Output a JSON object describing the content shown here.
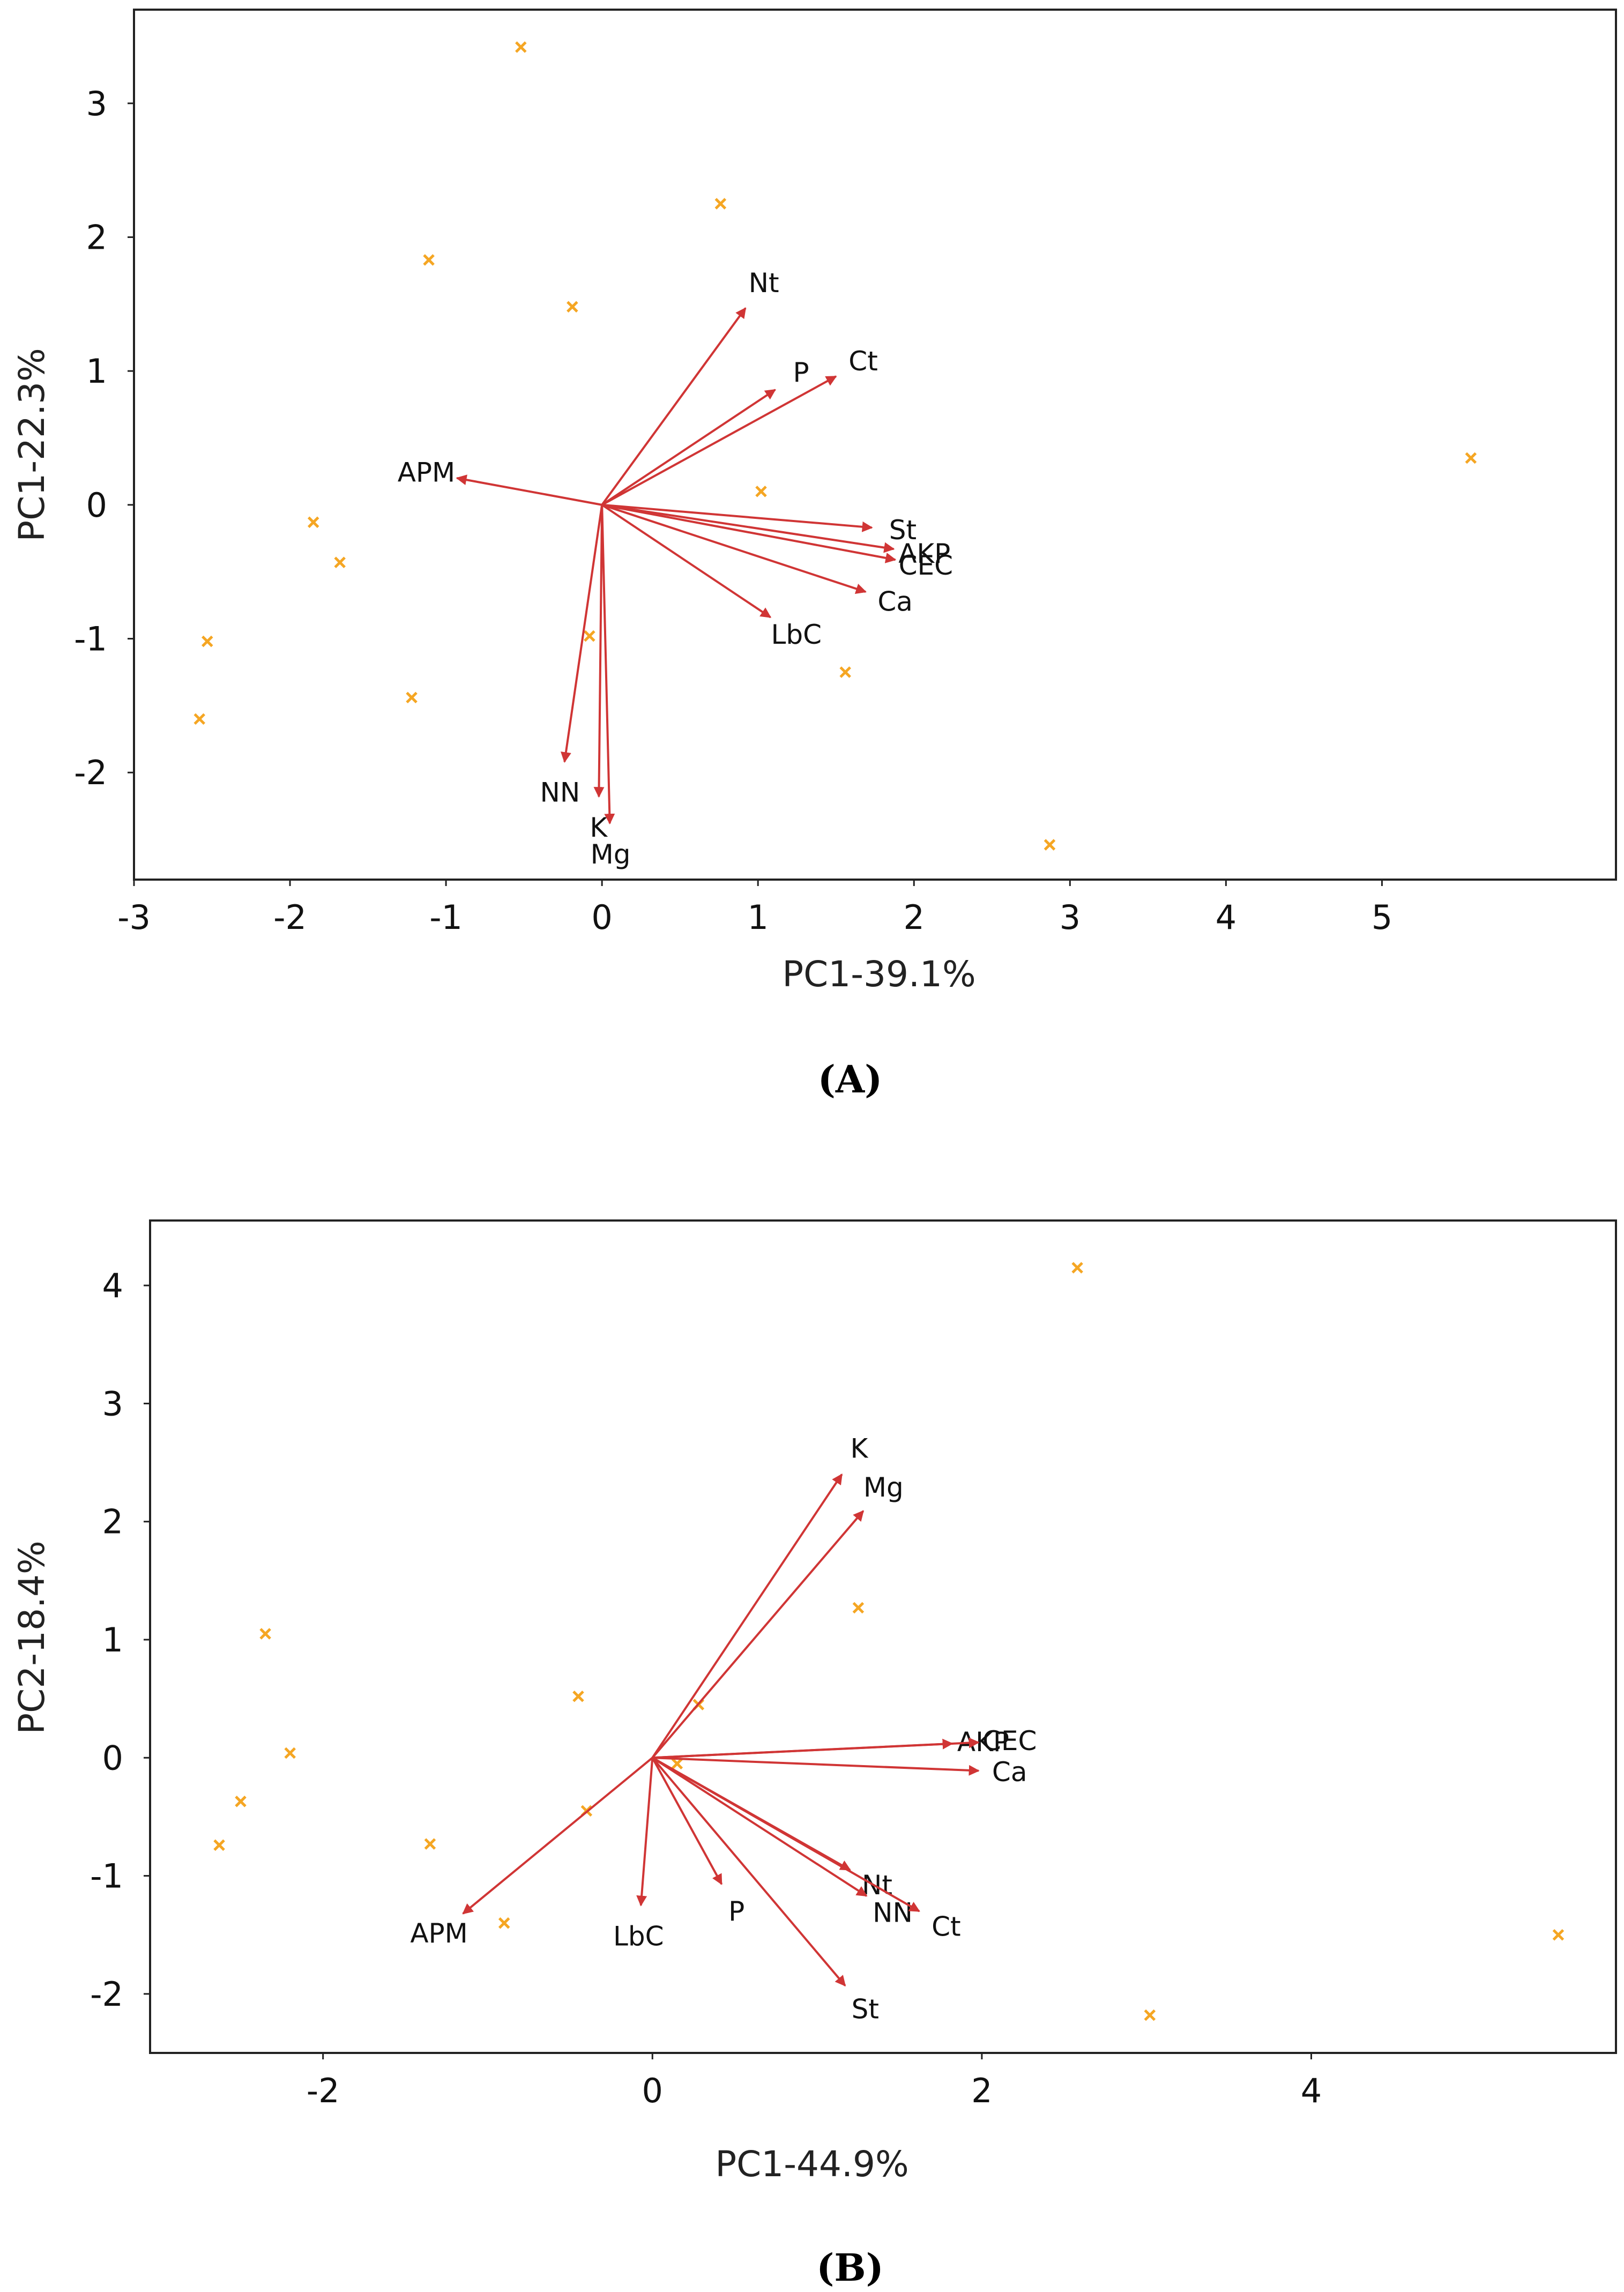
{
  "colors": {
    "arrow": "#d03535",
    "point": "#f5a623",
    "frame": "#222222"
  },
  "chart_data": [
    {
      "type": "scatter",
      "subtype": "pca-biplot",
      "caption": "(A)",
      "xlabel": "PC1-39.1%",
      "ylabel": "PC1-22.3%",
      "xlim": [
        -3,
        6.5
      ],
      "ylim": [
        -2.8,
        3.7
      ],
      "xticks": [
        -3,
        -2,
        -1,
        0,
        1,
        2,
        3,
        4,
        5
      ],
      "yticks": [
        -2,
        -1,
        0,
        1,
        2,
        3
      ],
      "points": [
        {
          "x": -0.52,
          "y": 3.42
        },
        {
          "x": 0.76,
          "y": 2.25
        },
        {
          "x": -1.11,
          "y": 1.83
        },
        {
          "x": -0.19,
          "y": 1.48
        },
        {
          "x": 5.57,
          "y": 0.35
        },
        {
          "x": 1.02,
          "y": 0.1
        },
        {
          "x": -1.85,
          "y": -0.13
        },
        {
          "x": -1.68,
          "y": -0.43
        },
        {
          "x": -0.08,
          "y": -0.98
        },
        {
          "x": -2.53,
          "y": -1.02
        },
        {
          "x": 1.56,
          "y": -1.25
        },
        {
          "x": -1.22,
          "y": -1.44
        },
        {
          "x": -2.58,
          "y": -1.6
        },
        {
          "x": 2.87,
          "y": -2.54
        }
      ],
      "loadings": [
        {
          "name": "Nt",
          "x": 0.92,
          "y": 1.47
        },
        {
          "name": "P",
          "x": 1.11,
          "y": 0.86
        },
        {
          "name": "Ct",
          "x": 1.5,
          "y": 0.96
        },
        {
          "name": "APM",
          "x": -0.93,
          "y": 0.2
        },
        {
          "name": "St",
          "x": 1.73,
          "y": -0.17
        },
        {
          "name": "AKP",
          "x": 1.87,
          "y": -0.33
        },
        {
          "name": "CEC",
          "x": 1.88,
          "y": -0.41
        },
        {
          "name": "Ca",
          "x": 1.69,
          "y": -0.65
        },
        {
          "name": "LbC",
          "x": 1.08,
          "y": -0.84
        },
        {
          "name": "NN",
          "x": -0.24,
          "y": -1.92
        },
        {
          "name": "K",
          "x": -0.02,
          "y": -2.18
        },
        {
          "name": "Mg",
          "x": 0.05,
          "y": -2.38
        }
      ]
    },
    {
      "type": "scatter",
      "subtype": "pca-biplot",
      "caption": "(B)",
      "xlabel": "PC1-44.9%",
      "ylabel": "PC2-18.4%",
      "xlim": [
        -3.05,
        5.85
      ],
      "ylim": [
        -2.5,
        4.55
      ],
      "xticks": [
        -2,
        0,
        2,
        4
      ],
      "yticks": [
        -2,
        -1,
        0,
        1,
        2,
        3,
        4
      ],
      "points": [
        {
          "x": 2.58,
          "y": 4.15
        },
        {
          "x": 1.25,
          "y": 1.27
        },
        {
          "x": -2.35,
          "y": 1.05
        },
        {
          "x": -0.45,
          "y": 0.52
        },
        {
          "x": 0.28,
          "y": 0.45
        },
        {
          "x": -2.2,
          "y": 0.04
        },
        {
          "x": 0.15,
          "y": -0.05
        },
        {
          "x": -2.5,
          "y": -0.37
        },
        {
          "x": -0.4,
          "y": -0.45
        },
        {
          "x": -2.63,
          "y": -0.74
        },
        {
          "x": -1.35,
          "y": -0.73
        },
        {
          "x": -0.9,
          "y": -1.4
        },
        {
          "x": 5.5,
          "y": -1.5
        },
        {
          "x": 3.02,
          "y": -2.18
        }
      ],
      "loadings": [
        {
          "name": "K",
          "x": 1.15,
          "y": 2.4
        },
        {
          "name": "Mg",
          "x": 1.28,
          "y": 2.09
        },
        {
          "name": "AKP",
          "x": 1.82,
          "y": 0.12
        },
        {
          "name": "CEC",
          "x": 1.98,
          "y": 0.13
        },
        {
          "name": "Ca",
          "x": 1.98,
          "y": -0.11
        },
        {
          "name": "Nt",
          "x": 1.2,
          "y": -0.95
        },
        {
          "name": "NN",
          "x": 1.3,
          "y": -1.17
        },
        {
          "name": "Ct",
          "x": 1.62,
          "y": -1.3
        },
        {
          "name": "St",
          "x": 1.17,
          "y": -1.93
        },
        {
          "name": "P",
          "x": 0.42,
          "y": -1.07
        },
        {
          "name": "LbC",
          "x": -0.07,
          "y": -1.25
        },
        {
          "name": "APM",
          "x": -1.15,
          "y": -1.32
        }
      ]
    }
  ]
}
